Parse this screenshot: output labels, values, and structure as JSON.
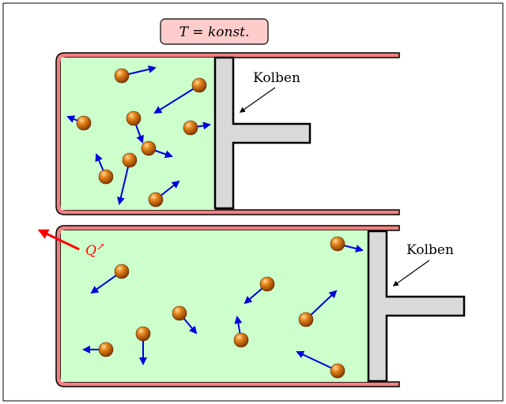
{
  "title_box": {
    "prefix": "T",
    "eq": " = ",
    "word": "konst.",
    "fill": "#ffcccc",
    "stroke": "#000000"
  },
  "piston_label_top": "Kolben",
  "piston_label_bottom": "Kolben",
  "heat_label": {
    "symbol": "Q",
    "arrow_glyph": "↗",
    "color": "#ff0000"
  },
  "colors": {
    "gas": "#ccffcc",
    "wall": "#f08080",
    "piston": "#d9d9d9",
    "velocity": "#0000dd",
    "molecule": "#c86414"
  },
  "icons": [
    "molecule-icon",
    "velocity-arrow-icon",
    "heat-arrow-icon",
    "pointer-arrow-icon"
  ]
}
